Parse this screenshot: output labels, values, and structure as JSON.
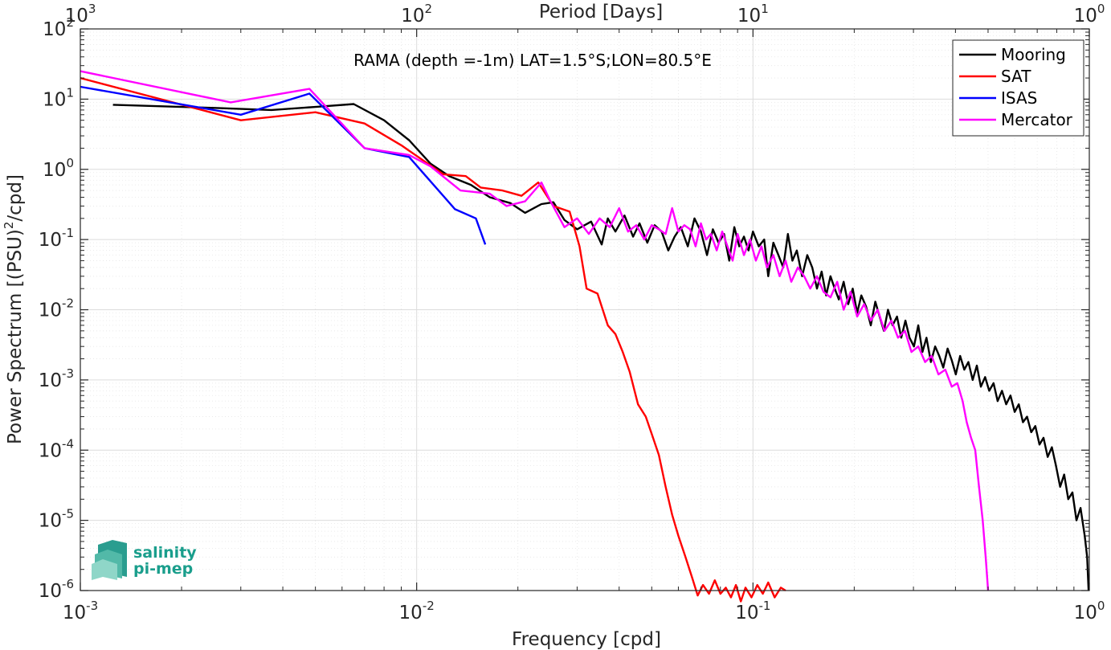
{
  "chart_data": {
    "type": "line",
    "title": "RAMA (depth =-1m) LAT=1.5°S;LON=80.5°E",
    "xlabel": "Frequency [cpd]",
    "ylabel": "Power Spectrum [(PSU)²/cpd]",
    "ylabel_parts": {
      "main": "Power Spectrum [(PSU)",
      "sup": "2",
      "end": "/cpd]"
    },
    "top_xlabel": "Period [Days]",
    "xscale": "log",
    "yscale": "log",
    "xlim": [
      0.001,
      1
    ],
    "ylim": [
      1e-06,
      100
    ],
    "grid": true,
    "minor_grid": true,
    "legend_position": "top-right",
    "x_ticks": [
      {
        "base": "10",
        "exp": "-3",
        "value": 0.001
      },
      {
        "base": "10",
        "exp": "-2",
        "value": 0.01
      },
      {
        "base": "10",
        "exp": "-1",
        "value": 0.1
      },
      {
        "base": "10",
        "exp": "0",
        "value": 1
      }
    ],
    "top_ticks": [
      {
        "base": "10",
        "exp": "3",
        "value": 0.001
      },
      {
        "base": "10",
        "exp": "2",
        "value": 0.01
      },
      {
        "base": "10",
        "exp": "1",
        "value": 0.1
      },
      {
        "base": "10",
        "exp": "0",
        "value": 1
      }
    ],
    "y_ticks": [
      {
        "base": "10",
        "exp": "2",
        "value": 100
      },
      {
        "base": "10",
        "exp": "1",
        "value": 10
      },
      {
        "base": "10",
        "exp": "0",
        "value": 1
      },
      {
        "base": "10",
        "exp": "-1",
        "value": 0.1
      },
      {
        "base": "10",
        "exp": "-2",
        "value": 0.01
      },
      {
        "base": "10",
        "exp": "-3",
        "value": 0.001
      },
      {
        "base": "10",
        "exp": "-4",
        "value": 0.0001
      },
      {
        "base": "10",
        "exp": "-5",
        "value": 1e-05
      },
      {
        "base": "10",
        "exp": "-6",
        "value": 1e-06
      }
    ],
    "series": [
      {
        "name": "Mooring",
        "color": "#000000",
        "x": [
          0.00125,
          0.0025,
          0.0037,
          0.0051,
          0.0065,
          0.008,
          0.0095,
          0.011,
          0.0125,
          0.0145,
          0.0165,
          0.019,
          0.021,
          0.0235,
          0.0255,
          0.0275,
          0.03,
          0.033,
          0.0355,
          0.037,
          0.039,
          0.0415,
          0.044,
          0.046,
          0.0485,
          0.051,
          0.0535,
          0.056,
          0.0585,
          0.061,
          0.064,
          0.067,
          0.07,
          0.073,
          0.076,
          0.079,
          0.082,
          0.085,
          0.088,
          0.091,
          0.094,
          0.097,
          0.1,
          0.104,
          0.108,
          0.111,
          0.115,
          0.119,
          0.123,
          0.127,
          0.131,
          0.135,
          0.14,
          0.145,
          0.15,
          0.155,
          0.16,
          0.165,
          0.17,
          0.175,
          0.18,
          0.186,
          0.192,
          0.198,
          0.204,
          0.21,
          0.217,
          0.224,
          0.231,
          0.238,
          0.245,
          0.252,
          0.26,
          0.268,
          0.276,
          0.284,
          0.292,
          0.301,
          0.31,
          0.319,
          0.328,
          0.338,
          0.348,
          0.358,
          0.368,
          0.379,
          0.39,
          0.401,
          0.413,
          0.425,
          0.437,
          0.45,
          0.463,
          0.476,
          0.49,
          0.504,
          0.519,
          0.534,
          0.55,
          0.566,
          0.583,
          0.6,
          0.617,
          0.635,
          0.653,
          0.672,
          0.691,
          0.711,
          0.731,
          0.752,
          0.774,
          0.796,
          0.819,
          0.842,
          0.866,
          0.891,
          0.916,
          0.942,
          0.969,
          0.985,
          0.995
        ],
        "y": [
          8.3,
          7.5,
          7.0,
          7.8,
          8.5,
          5.0,
          2.6,
          1.2,
          0.8,
          0.6,
          0.4,
          0.33,
          0.24,
          0.32,
          0.34,
          0.19,
          0.14,
          0.18,
          0.085,
          0.2,
          0.13,
          0.22,
          0.11,
          0.17,
          0.09,
          0.16,
          0.13,
          0.07,
          0.11,
          0.15,
          0.08,
          0.2,
          0.13,
          0.06,
          0.14,
          0.09,
          0.12,
          0.05,
          0.15,
          0.08,
          0.11,
          0.07,
          0.13,
          0.08,
          0.1,
          0.03,
          0.09,
          0.06,
          0.04,
          0.12,
          0.05,
          0.07,
          0.03,
          0.06,
          0.04,
          0.02,
          0.035,
          0.016,
          0.03,
          0.02,
          0.014,
          0.025,
          0.012,
          0.02,
          0.009,
          0.016,
          0.011,
          0.006,
          0.013,
          0.008,
          0.005,
          0.01,
          0.006,
          0.008,
          0.004,
          0.007,
          0.004,
          0.003,
          0.006,
          0.0025,
          0.004,
          0.0018,
          0.003,
          0.0022,
          0.0015,
          0.0028,
          0.0019,
          0.0012,
          0.0022,
          0.0014,
          0.0018,
          0.001,
          0.0016,
          0.0008,
          0.0011,
          0.0007,
          0.0009,
          0.0005,
          0.0007,
          0.00045,
          0.0006,
          0.00035,
          0.00045,
          0.00025,
          0.0003,
          0.00018,
          0.00022,
          0.00012,
          0.00015,
          8e-05,
          0.00011,
          6e-05,
          3e-05,
          4.5e-05,
          2e-05,
          2.5e-05,
          1e-05,
          1.5e-05,
          6e-06,
          3e-06,
          1e-06
        ]
      },
      {
        "name": "SAT",
        "color": "#ff0000",
        "x": [
          0.001,
          0.003,
          0.005,
          0.007,
          0.009,
          0.012,
          0.014,
          0.0155,
          0.018,
          0.0205,
          0.023,
          0.0255,
          0.0285,
          0.0305,
          0.032,
          0.0345,
          0.037,
          0.039,
          0.041,
          0.043,
          0.0455,
          0.048,
          0.05,
          0.0525,
          0.055,
          0.0575,
          0.06,
          0.063,
          0.066,
          0.0685,
          0.071,
          0.074,
          0.077,
          0.08,
          0.083,
          0.086,
          0.089,
          0.092,
          0.095,
          0.099,
          0.103,
          0.107,
          0.111,
          0.116,
          0.121,
          0.125
        ],
        "y": [
          20,
          5.0,
          6.5,
          4.5,
          2.2,
          0.85,
          0.8,
          0.55,
          0.5,
          0.42,
          0.65,
          0.3,
          0.25,
          0.08,
          0.02,
          0.017,
          0.006,
          0.0045,
          0.0025,
          0.0013,
          0.00045,
          0.0003,
          0.00017,
          8.5e-05,
          3e-05,
          1.2e-05,
          6e-06,
          3e-06,
          1.5e-06,
          8.5e-07,
          1.2e-06,
          9e-07,
          1.4e-06,
          9e-07,
          1.1e-06,
          8e-07,
          1.2e-06,
          7e-07,
          1.1e-06,
          8e-07,
          1.2e-06,
          9e-07,
          1.3e-06,
          8e-07,
          1.1e-06,
          1e-06
        ]
      },
      {
        "name": "ISAS",
        "color": "#0000ff",
        "x": [
          0.001,
          0.003,
          0.0048,
          0.007,
          0.0095,
          0.013,
          0.015,
          0.016
        ],
        "y": [
          15,
          6.0,
          12,
          2.0,
          1.5,
          0.27,
          0.2,
          0.085
        ]
      },
      {
        "name": "Mercator",
        "color": "#ff00ff",
        "x": [
          0.001,
          0.0028,
          0.0048,
          0.007,
          0.0095,
          0.011,
          0.0135,
          0.0165,
          0.0185,
          0.021,
          0.0235,
          0.025,
          0.0275,
          0.03,
          0.0325,
          0.035,
          0.0375,
          0.04,
          0.0425,
          0.045,
          0.0475,
          0.05,
          0.0525,
          0.055,
          0.0575,
          0.06,
          0.0625,
          0.065,
          0.0675,
          0.07,
          0.0725,
          0.075,
          0.078,
          0.081,
          0.084,
          0.087,
          0.09,
          0.094,
          0.098,
          0.102,
          0.106,
          0.11,
          0.115,
          0.12,
          0.125,
          0.13,
          0.136,
          0.142,
          0.148,
          0.155,
          0.162,
          0.17,
          0.178,
          0.186,
          0.195,
          0.204,
          0.214,
          0.224,
          0.235,
          0.246,
          0.258,
          0.27,
          0.283,
          0.296,
          0.31,
          0.325,
          0.34,
          0.356,
          0.373,
          0.39,
          0.405,
          0.42,
          0.432,
          0.445,
          0.458,
          0.47,
          0.482,
          0.492,
          0.5
        ],
        "y": [
          25,
          9.0,
          14,
          2.0,
          1.6,
          1.1,
          0.5,
          0.45,
          0.3,
          0.35,
          0.65,
          0.35,
          0.15,
          0.2,
          0.12,
          0.2,
          0.15,
          0.28,
          0.13,
          0.16,
          0.1,
          0.16,
          0.14,
          0.12,
          0.28,
          0.13,
          0.16,
          0.14,
          0.08,
          0.17,
          0.1,
          0.12,
          0.07,
          0.13,
          0.08,
          0.05,
          0.12,
          0.06,
          0.1,
          0.05,
          0.08,
          0.04,
          0.06,
          0.03,
          0.05,
          0.025,
          0.04,
          0.03,
          0.02,
          0.03,
          0.018,
          0.015,
          0.025,
          0.01,
          0.018,
          0.008,
          0.012,
          0.007,
          0.01,
          0.005,
          0.007,
          0.004,
          0.005,
          0.0025,
          0.003,
          0.0018,
          0.0022,
          0.0012,
          0.0014,
          0.0008,
          0.0009,
          0.0005,
          0.00025,
          0.00015,
          0.0001,
          3e-05,
          1e-05,
          3e-06,
          1e-06
        ]
      }
    ],
    "logo": {
      "line1": "salinity",
      "line2": "pi-mep"
    }
  }
}
